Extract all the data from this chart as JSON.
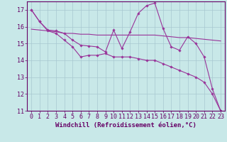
{
  "background_color": "#c8e8e8",
  "grid_color": "#a8c8d0",
  "line_color": "#993399",
  "xlim": [
    -0.5,
    23.5
  ],
  "ylim": [
    11,
    17.5
  ],
  "xlabel": "Windchill (Refroidissement éolien,°C)",
  "xlabel_fontsize": 6.5,
  "tick_fontsize": 6,
  "xticks": [
    0,
    1,
    2,
    3,
    4,
    5,
    6,
    7,
    8,
    9,
    10,
    11,
    12,
    13,
    14,
    15,
    16,
    17,
    18,
    19,
    20,
    21,
    22,
    23
  ],
  "yticks": [
    11,
    12,
    13,
    14,
    15,
    16,
    17
  ],
  "line1_x": [
    0,
    1,
    2,
    3,
    4,
    5,
    6,
    7,
    8,
    9,
    10,
    11,
    12,
    13,
    14,
    15,
    16,
    17,
    18,
    19,
    20,
    21,
    22,
    23
  ],
  "line1_y": [
    17.0,
    16.3,
    15.8,
    15.75,
    15.6,
    15.2,
    14.9,
    14.85,
    14.8,
    14.5,
    15.8,
    14.7,
    15.7,
    16.8,
    17.25,
    17.4,
    15.9,
    14.8,
    14.6,
    15.4,
    15.0,
    14.2,
    12.3,
    11.0
  ],
  "line2_x": [
    0,
    1,
    2,
    3,
    4,
    5,
    6,
    7,
    8,
    9,
    10,
    11,
    12,
    13,
    14,
    15,
    16,
    17,
    18,
    19,
    20,
    21,
    22,
    23
  ],
  "line2_y": [
    15.85,
    15.8,
    15.75,
    15.7,
    15.6,
    15.6,
    15.55,
    15.55,
    15.5,
    15.5,
    15.5,
    15.5,
    15.5,
    15.5,
    15.5,
    15.5,
    15.45,
    15.4,
    15.35,
    15.35,
    15.3,
    15.25,
    15.2,
    15.15
  ],
  "line3_x": [
    0,
    1,
    2,
    3,
    4,
    5,
    6,
    7,
    8,
    9,
    10,
    11,
    12,
    13,
    14,
    15,
    16,
    17,
    18,
    19,
    20,
    21,
    22,
    23
  ],
  "line3_y": [
    17.0,
    16.3,
    15.75,
    15.6,
    15.2,
    14.8,
    14.2,
    14.3,
    14.3,
    14.4,
    14.2,
    14.2,
    14.2,
    14.1,
    14.0,
    14.0,
    13.8,
    13.6,
    13.4,
    13.2,
    13.0,
    12.7,
    12.0,
    11.0
  ]
}
